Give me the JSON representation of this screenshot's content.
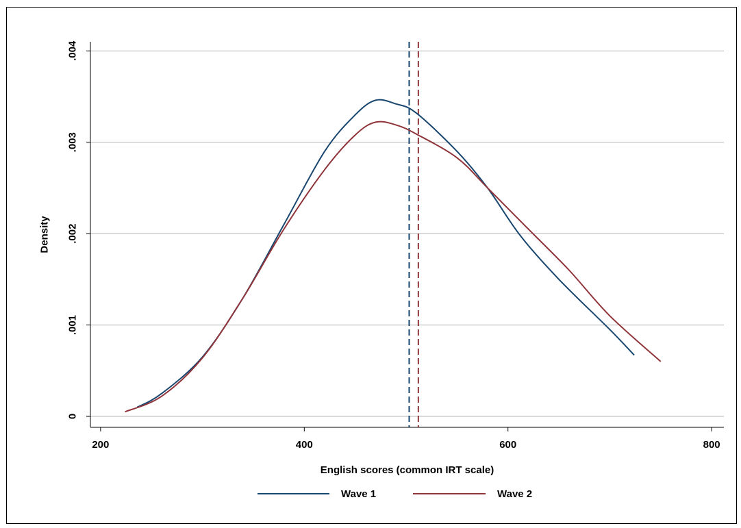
{
  "chart_data": {
    "type": "line",
    "xlabel": "English scores (common IRT scale)",
    "ylabel": "Density",
    "xlim": [
      190,
      812
    ],
    "ylim": [
      -0.00012,
      0.0041
    ],
    "xticks": [
      200,
      400,
      600,
      800
    ],
    "xtick_labels": [
      "200",
      "400",
      "600",
      "800"
    ],
    "yticks": [
      0,
      0.001,
      0.002,
      0.003,
      0.004
    ],
    "ytick_labels": [
      "0",
      ".001",
      ".002",
      ".003",
      ".004"
    ],
    "grid": "horizontal",
    "legend_position": "bottom",
    "series": [
      {
        "name": "Wave 1",
        "color": "#1a476f",
        "x": [
          236,
          260,
          300,
          340,
          380,
          420,
          450,
          470,
          490,
          510,
          550,
          580,
          612,
          650,
          700,
          724
        ],
        "y": [
          0.0001,
          0.00025,
          0.00065,
          0.0013,
          0.0021,
          0.0029,
          0.0033,
          0.00346,
          0.00342,
          0.00332,
          0.0029,
          0.0025,
          0.00198,
          0.0015,
          0.00095,
          0.00067
        ]
      },
      {
        "name": "Wave 2",
        "color": "#90353b",
        "x": [
          224,
          260,
          300,
          340,
          380,
          420,
          450,
          470,
          490,
          510,
          550,
          580,
          620,
          660,
          700,
          750
        ],
        "y": [
          5e-05,
          0.00022,
          0.00064,
          0.0013,
          0.00205,
          0.0027,
          0.00308,
          0.00322,
          0.00319,
          0.00309,
          0.00283,
          0.0025,
          0.00205,
          0.0016,
          0.0011,
          0.0006
        ]
      }
    ],
    "vlines": [
      {
        "series": "Wave 1",
        "x": 503,
        "color": "#1a476f",
        "style": "dashed"
      },
      {
        "series": "Wave 2",
        "x": 512,
        "color": "#90353b",
        "style": "dashed"
      }
    ]
  }
}
